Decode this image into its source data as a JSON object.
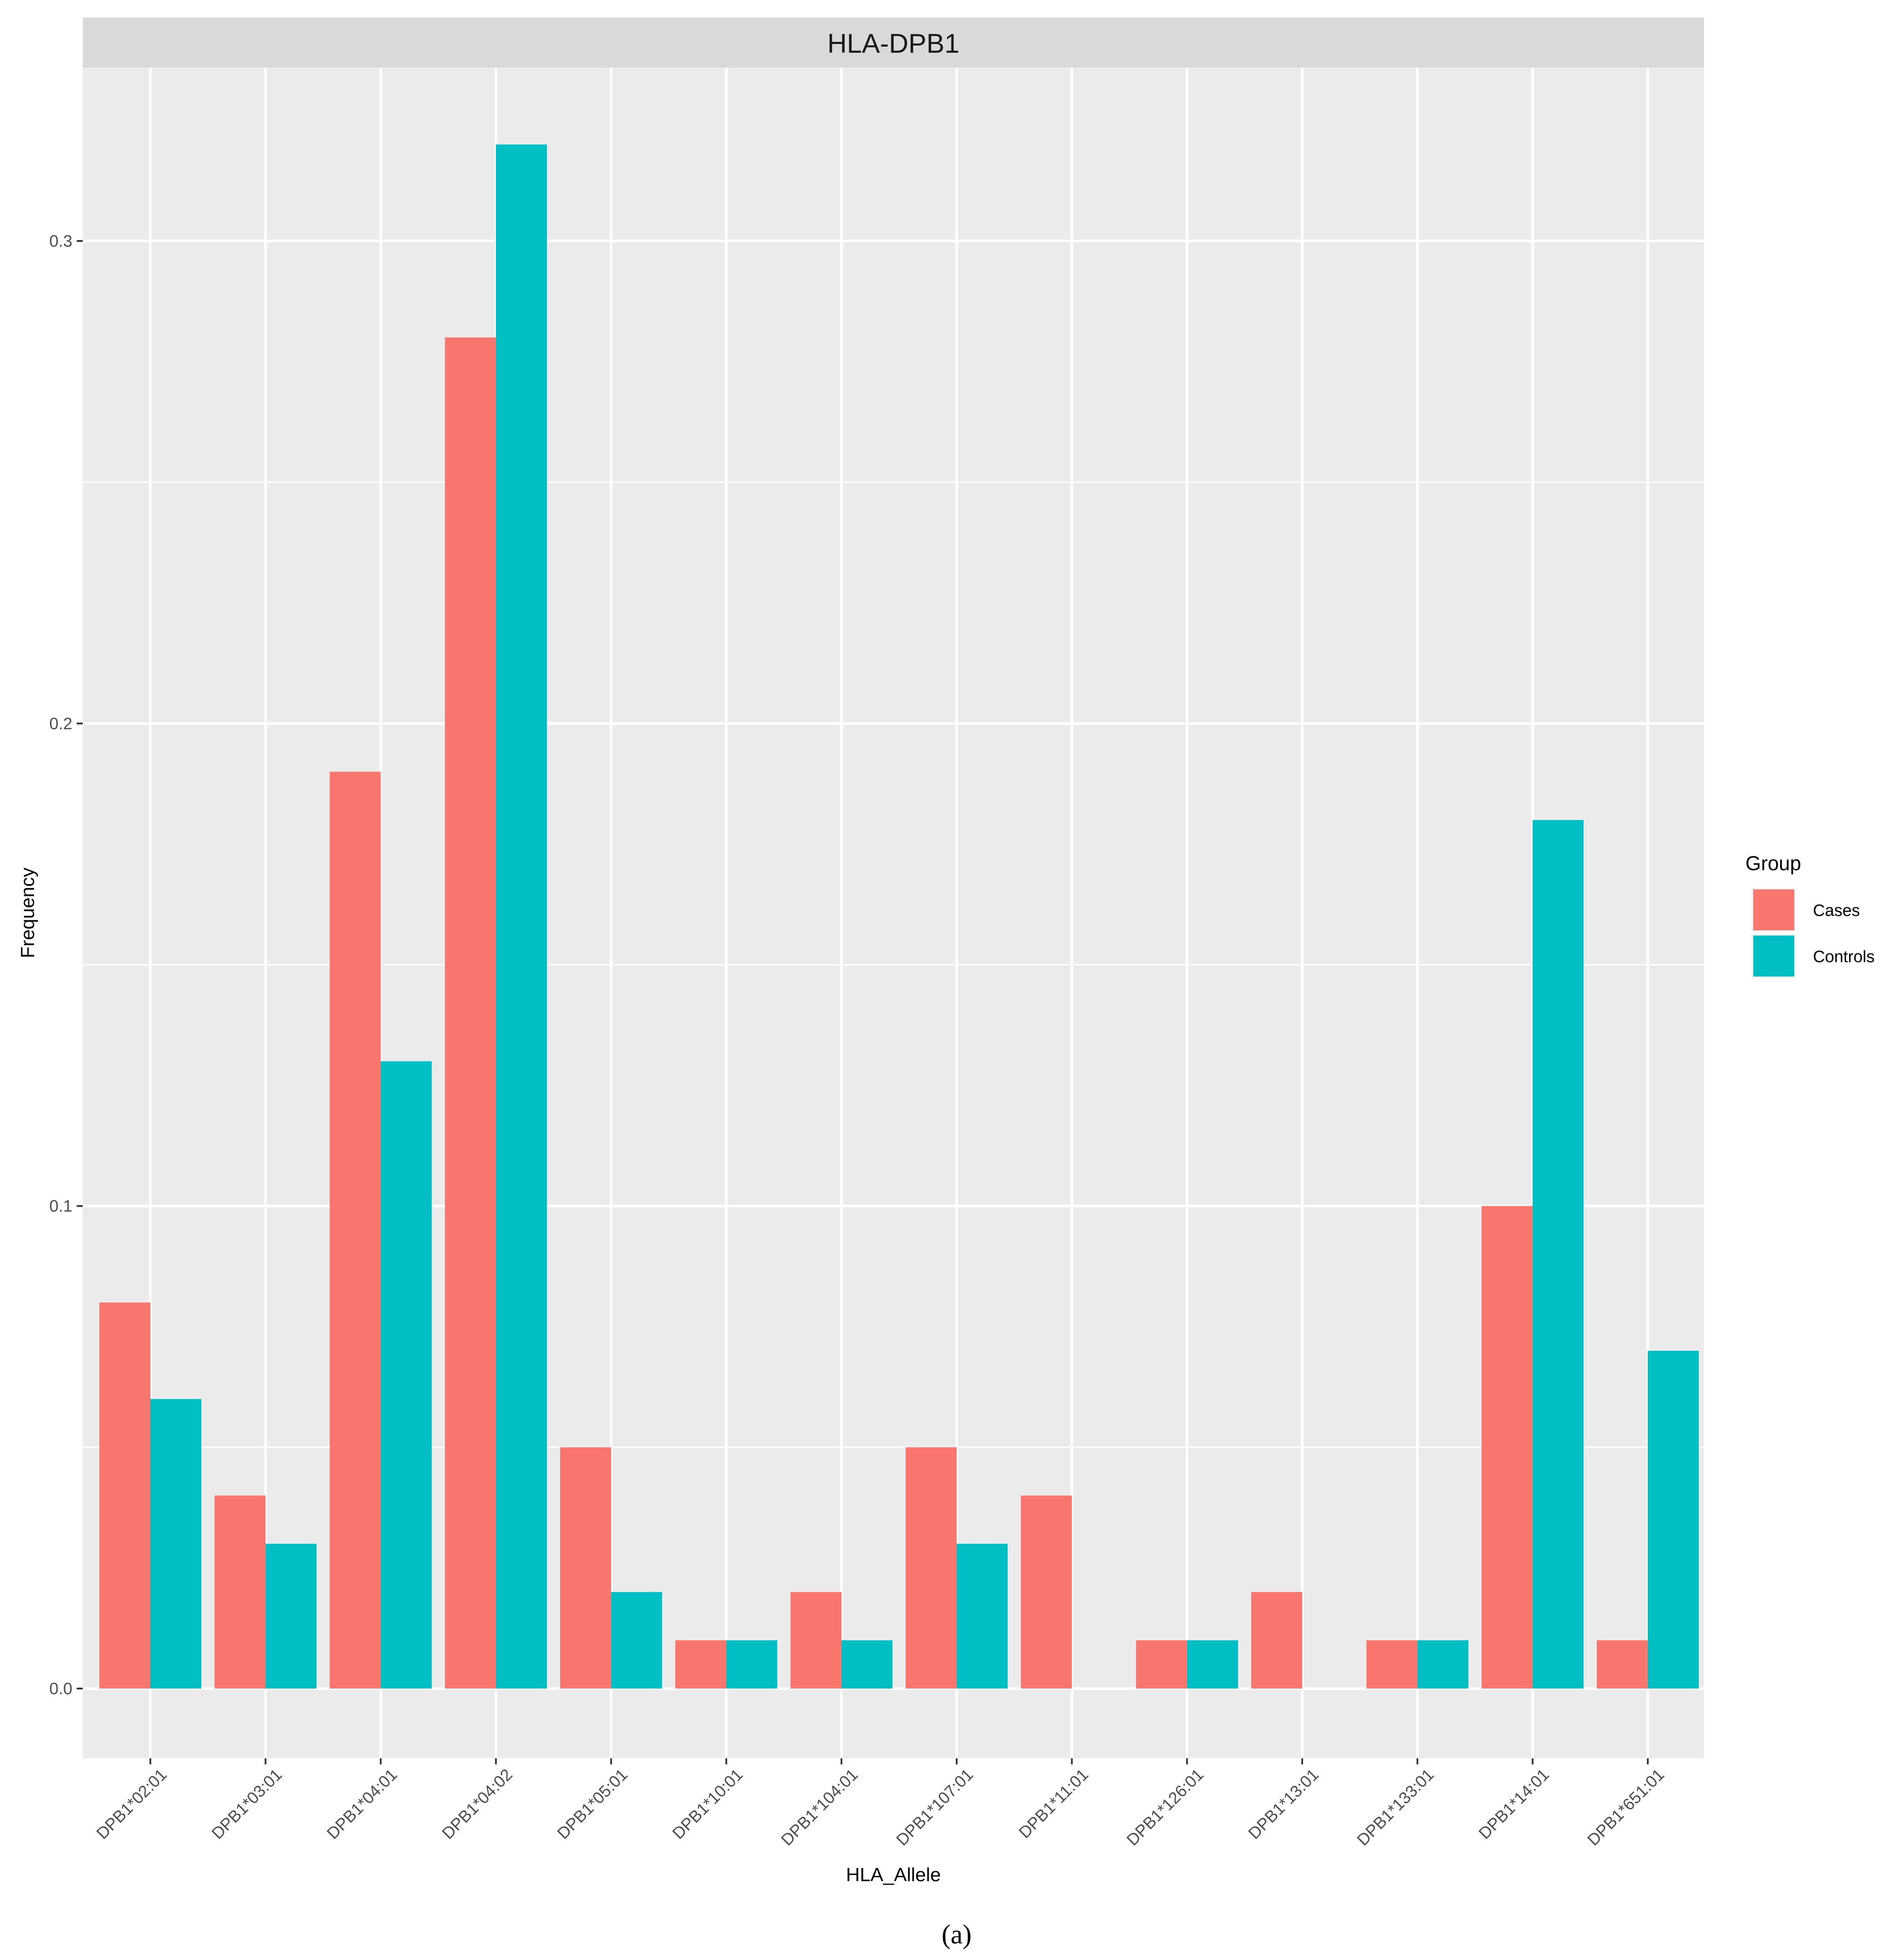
{
  "chart_data": {
    "type": "bar",
    "title": "HLA-DPB1",
    "xlabel": "HLA_Allele",
    "ylabel": "Frequency",
    "categories": [
      "DPB1*02:01",
      "DPB1*03:01",
      "DPB1*04:01",
      "DPB1*04:02",
      "DPB1*05:01",
      "DPB1*10:01",
      "DPB1*104:01",
      "DPB1*107:01",
      "DPB1*11:01",
      "DPB1*126:01",
      "DPB1*13:01",
      "DPB1*133:01",
      "DPB1*14:01",
      "DPB1*651:01"
    ],
    "series": [
      {
        "name": "Cases",
        "color": "#F8766D",
        "values": [
          0.08,
          0.04,
          0.19,
          0.28,
          0.05,
          0.01,
          0.02,
          0.05,
          0.04,
          0.01,
          0.02,
          0.01,
          0.1,
          0.01
        ]
      },
      {
        "name": "Controls",
        "color": "#00BFC4",
        "values": [
          0.06,
          0.03,
          0.13,
          0.32,
          0.02,
          0.01,
          0.01,
          0.03,
          0.0,
          0.01,
          0.0,
          0.01,
          0.18,
          0.07
        ]
      }
    ],
    "yticks": [
      "0.0",
      "0.1",
      "0.2",
      "0.3"
    ],
    "ylim": [
      -0.015,
      0.35
    ],
    "legend": {
      "title": "Group",
      "position": "right"
    },
    "grid": true
  },
  "caption": "(a)"
}
